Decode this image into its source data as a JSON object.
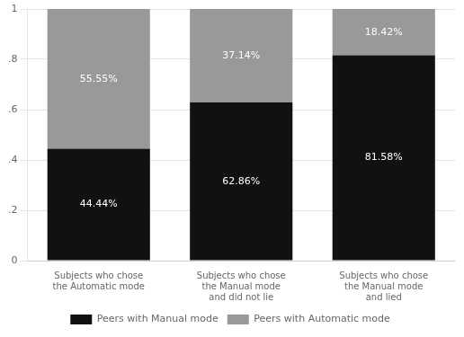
{
  "chart_data": {
    "type": "bar",
    "stacked": true,
    "categories": [
      "Subjects who chose\nthe Automatic mode",
      "Subjects who chose\nthe Manual mode\nand did not lie",
      "Subjects who chose\nthe Manual mode\nand lied"
    ],
    "series": [
      {
        "name": "Peers with Manual mode",
        "color": "#111111",
        "values": [
          0.4444,
          0.6286,
          0.8158
        ],
        "value_labels": [
          "44.44%",
          "62.86%",
          "81.58%"
        ]
      },
      {
        "name": "Peers with Automatic mode",
        "color": "#999999",
        "values": [
          0.5555,
          0.3714,
          0.1842
        ],
        "value_labels": [
          "55.55%",
          "37.14%",
          "18.42%"
        ]
      }
    ],
    "ylim": [
      0,
      1
    ],
    "yticks": [
      0,
      {
        "value": 0.2,
        "label": ".2"
      },
      {
        "value": 0.4,
        "label": ".4"
      },
      {
        "value": 0.6,
        "label": ".6"
      },
      {
        "value": 0.8,
        "label": ".8"
      },
      1
    ],
    "grid": true,
    "legend": "bottom",
    "data_labels": true
  }
}
